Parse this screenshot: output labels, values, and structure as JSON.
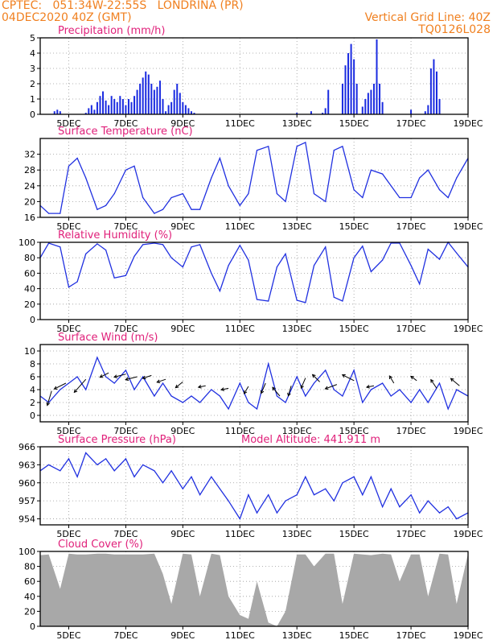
{
  "header": {
    "line1": "CPTEC:   051:34W-22:55S   LONDRINA (PR)",
    "line2": "04DEC2020 40Z (GMT)",
    "grid_note": "Vertical Grid Line: 40Z",
    "code": "TQ0126L028"
  },
  "colors": {
    "header": "#f08020",
    "title": "#e0207a",
    "line": "#2030e0",
    "bar": "#1a2be0",
    "cloud": "#a8a8a8",
    "arrow": "#000000"
  },
  "x_ticks": [
    "5DEC",
    "7DEC",
    "9DEC",
    "11DEC",
    "13DEC",
    "15DEC",
    "17DEC",
    "19DEC"
  ],
  "chart_data": [
    {
      "type": "bar",
      "title": "Precipitation (mm/h)",
      "xlim": [
        4,
        19
      ],
      "ylim": [
        0,
        5
      ],
      "yticks": [
        0,
        1,
        2,
        3,
        4,
        5
      ],
      "x": [
        4.5,
        4.6,
        4.7,
        5.6,
        5.7,
        5.8,
        5.9,
        6.0,
        6.1,
        6.2,
        6.3,
        6.4,
        6.5,
        6.6,
        6.7,
        6.8,
        6.9,
        7.0,
        7.1,
        7.2,
        7.3,
        7.4,
        7.5,
        7.6,
        7.7,
        7.8,
        7.9,
        8.0,
        8.1,
        8.2,
        8.3,
        8.4,
        8.5,
        8.6,
        8.7,
        8.8,
        8.9,
        9.0,
        9.1,
        9.2,
        9.3,
        9.4,
        13.0,
        13.5,
        13.9,
        14.0,
        14.1,
        14.6,
        14.7,
        14.8,
        14.9,
        15.0,
        15.1,
        15.3,
        15.4,
        15.5,
        15.6,
        15.7,
        15.8,
        15.9,
        16.0,
        17.0,
        17.5,
        17.6,
        17.7,
        17.8,
        17.9,
        18.0
      ],
      "values": [
        0.2,
        0.3,
        0.2,
        0.1,
        0.4,
        0.6,
        0.3,
        0.8,
        1.2,
        1.5,
        0.9,
        0.6,
        1.2,
        1.0,
        0.8,
        1.2,
        1.0,
        0.6,
        1.0,
        0.8,
        1.2,
        1.6,
        2.0,
        2.4,
        2.8,
        2.6,
        2.0,
        1.6,
        1.8,
        2.2,
        1.0,
        0.2,
        0.6,
        0.8,
        1.6,
        2.0,
        1.4,
        0.8,
        0.6,
        0.4,
        0.2,
        0.1,
        0.1,
        0.2,
        0.1,
        0.4,
        1.6,
        2.0,
        3.2,
        4.0,
        4.6,
        3.6,
        2.0,
        0.5,
        1.0,
        1.4,
        1.6,
        2.0,
        4.9,
        2.0,
        0.8,
        0.3,
        0.2,
        0.6,
        3.0,
        3.6,
        2.8,
        1.0
      ]
    },
    {
      "type": "line",
      "title": "Surface Temperature (nC)",
      "xlim": [
        4,
        19
      ],
      "ylim": [
        16,
        36
      ],
      "yticks": [
        16,
        20,
        24,
        28,
        32
      ],
      "x": [
        4.0,
        4.3,
        4.7,
        5.0,
        5.3,
        5.6,
        6.0,
        6.3,
        6.6,
        7.0,
        7.3,
        7.6,
        8.0,
        8.3,
        8.6,
        9.0,
        9.3,
        9.6,
        10.0,
        10.3,
        10.6,
        11.0,
        11.3,
        11.6,
        12.0,
        12.3,
        12.6,
        13.0,
        13.3,
        13.6,
        14.0,
        14.3,
        14.6,
        15.0,
        15.3,
        15.6,
        16.0,
        16.3,
        16.6,
        17.0,
        17.3,
        17.6,
        18.0,
        18.3,
        18.6,
        19.0
      ],
      "values": [
        19,
        17,
        17,
        29,
        31,
        26,
        18,
        19,
        22,
        28,
        29,
        21,
        17,
        18,
        21,
        22,
        18,
        18,
        26,
        31,
        24,
        19,
        22,
        33,
        34,
        22,
        20,
        34,
        35,
        22,
        20,
        33,
        34,
        23,
        21,
        28,
        27,
        24,
        21,
        21,
        26,
        28,
        23,
        21,
        26,
        31
      ]
    },
    {
      "type": "line",
      "title": "Relative Humidity (%)",
      "xlim": [
        4,
        19
      ],
      "ylim": [
        0,
        100
      ],
      "yticks": [
        0,
        20,
        40,
        60,
        80,
        100
      ],
      "x": [
        4.0,
        4.3,
        4.7,
        5.0,
        5.3,
        5.6,
        6.0,
        6.3,
        6.6,
        7.0,
        7.3,
        7.6,
        8.0,
        8.3,
        8.6,
        9.0,
        9.3,
        9.6,
        10.0,
        10.3,
        10.6,
        11.0,
        11.3,
        11.6,
        12.0,
        12.3,
        12.6,
        13.0,
        13.3,
        13.6,
        14.0,
        14.3,
        14.6,
        15.0,
        15.3,
        15.6,
        16.0,
        16.3,
        16.6,
        17.0,
        17.3,
        17.6,
        18.0,
        18.3,
        18.6,
        19.0
      ],
      "values": [
        80,
        99,
        94,
        42,
        49,
        85,
        98,
        90,
        54,
        57,
        82,
        97,
        99,
        97,
        80,
        68,
        94,
        97,
        60,
        37,
        70,
        96,
        77,
        26,
        24,
        68,
        85,
        25,
        22,
        70,
        94,
        29,
        24,
        80,
        95,
        62,
        77,
        99,
        99,
        70,
        46,
        91,
        78,
        100,
        86,
        68
      ]
    },
    {
      "type": "line",
      "title": "Surface Wind (m/s)",
      "xlim": [
        4,
        19
      ],
      "ylim": [
        -1,
        11
      ],
      "yticks": [
        0,
        2,
        4,
        6,
        8,
        10
      ],
      "x": [
        4.0,
        4.3,
        4.7,
        5.0,
        5.3,
        5.6,
        6.0,
        6.3,
        6.6,
        7.0,
        7.3,
        7.6,
        8.0,
        8.3,
        8.6,
        9.0,
        9.3,
        9.6,
        10.0,
        10.3,
        10.6,
        11.0,
        11.3,
        11.6,
        12.0,
        12.3,
        12.6,
        13.0,
        13.3,
        13.6,
        14.0,
        14.3,
        14.6,
        15.0,
        15.3,
        15.6,
        16.0,
        16.3,
        16.6,
        17.0,
        17.3,
        17.6,
        18.0,
        18.3,
        18.6,
        19.0
      ],
      "values": [
        3,
        2,
        4,
        5,
        6,
        4,
        9,
        6,
        5,
        7,
        4,
        6,
        3,
        5,
        3,
        2,
        3,
        2,
        4,
        3,
        1,
        5,
        2,
        1,
        8,
        3,
        2,
        6,
        3,
        5,
        7,
        4,
        3,
        7,
        2,
        4,
        5,
        3,
        4,
        2,
        4,
        2,
        5,
        1,
        4,
        3
      ],
      "vectors": [
        {
          "x": 4.4,
          "y": 3.8,
          "u": -0.6,
          "v": -2.0
        },
        {
          "x": 4.9,
          "y": 5.0,
          "u": -1.6,
          "v": -0.8
        },
        {
          "x": 5.6,
          "y": 5.6,
          "u": -1.6,
          "v": -1.8
        },
        {
          "x": 6.4,
          "y": 6.6,
          "u": -1.2,
          "v": -0.6
        },
        {
          "x": 7.0,
          "y": 6.4,
          "u": -1.6,
          "v": -0.4
        },
        {
          "x": 7.4,
          "y": 6.0,
          "u": -1.6,
          "v": -0.4
        },
        {
          "x": 7.9,
          "y": 6.2,
          "u": -1.2,
          "v": -0.4
        },
        {
          "x": 8.4,
          "y": 5.6,
          "u": -1.2,
          "v": -0.4
        },
        {
          "x": 9.0,
          "y": 5.2,
          "u": -1.0,
          "v": -0.8
        },
        {
          "x": 9.8,
          "y": 4.6,
          "u": -1.0,
          "v": -0.2
        },
        {
          "x": 10.6,
          "y": 4.2,
          "u": -1.0,
          "v": -0.2
        },
        {
          "x": 11.3,
          "y": 4.5,
          "u": -0.6,
          "v": -1.0
        },
        {
          "x": 11.9,
          "y": 5.0,
          "u": -0.6,
          "v": -1.4
        },
        {
          "x": 12.4,
          "y": 3.0,
          "u": -1.0,
          "v": 1.2
        },
        {
          "x": 12.8,
          "y": 4.6,
          "u": -0.4,
          "v": -1.4
        },
        {
          "x": 13.3,
          "y": 5.8,
          "u": -0.6,
          "v": -1.4
        },
        {
          "x": 13.8,
          "y": 5.2,
          "u": -1.0,
          "v": 1.0
        },
        {
          "x": 14.4,
          "y": 4.8,
          "u": -1.6,
          "v": -0.6
        },
        {
          "x": 15.0,
          "y": 5.4,
          "u": -1.6,
          "v": 0.8
        },
        {
          "x": 15.7,
          "y": 4.6,
          "u": -1.0,
          "v": -0.2
        },
        {
          "x": 16.4,
          "y": 5.0,
          "u": -0.6,
          "v": 1.0
        },
        {
          "x": 17.2,
          "y": 5.4,
          "u": -0.8,
          "v": 0.6
        },
        {
          "x": 17.9,
          "y": 4.2,
          "u": -0.8,
          "v": 1.2
        },
        {
          "x": 18.7,
          "y": 4.6,
          "u": -1.2,
          "v": 1.0
        }
      ]
    },
    {
      "type": "line",
      "title": "Surface Pressure (hPa)",
      "annotation": "Model Altitude: 441.911  m",
      "xlim": [
        4,
        19
      ],
      "ylim": [
        953,
        966
      ],
      "yticks": [
        954,
        957,
        960,
        963,
        966
      ],
      "x": [
        4.0,
        4.3,
        4.7,
        5.0,
        5.3,
        5.6,
        6.0,
        6.3,
        6.6,
        7.0,
        7.3,
        7.6,
        8.0,
        8.3,
        8.6,
        9.0,
        9.3,
        9.6,
        10.0,
        10.3,
        10.6,
        11.0,
        11.3,
        11.6,
        12.0,
        12.3,
        12.6,
        13.0,
        13.3,
        13.6,
        14.0,
        14.3,
        14.6,
        15.0,
        15.3,
        15.6,
        16.0,
        16.3,
        16.6,
        17.0,
        17.3,
        17.6,
        18.0,
        18.3,
        18.6,
        19.0
      ],
      "values": [
        962,
        963,
        962,
        964,
        961,
        965,
        963,
        964,
        962,
        964,
        961,
        963,
        962,
        960,
        962,
        959,
        961,
        958,
        961,
        959,
        957,
        954,
        958,
        955,
        958,
        955,
        957,
        958,
        961,
        958,
        959,
        957,
        960,
        961,
        958,
        961,
        956,
        959,
        956,
        958,
        955,
        957,
        955,
        956,
        954,
        955
      ]
    },
    {
      "type": "area",
      "title": "Cloud Cover (%)",
      "xlim": [
        4,
        19
      ],
      "ylim": [
        0,
        100
      ],
      "yticks": [
        0,
        20,
        40,
        60,
        80,
        100
      ],
      "x": [
        4.0,
        4.3,
        4.7,
        5.0,
        5.3,
        5.6,
        6.0,
        6.3,
        6.6,
        7.0,
        7.3,
        7.6,
        8.0,
        8.3,
        8.6,
        9.0,
        9.3,
        9.6,
        10.0,
        10.3,
        10.6,
        11.0,
        11.3,
        11.6,
        12.0,
        12.3,
        12.6,
        13.0,
        13.3,
        13.6,
        14.0,
        14.3,
        14.6,
        15.0,
        15.3,
        15.6,
        16.0,
        16.3,
        16.6,
        17.0,
        17.3,
        17.6,
        18.0,
        18.3,
        18.6,
        19.0
      ],
      "values": [
        95,
        96,
        50,
        97,
        96,
        96,
        97,
        97,
        96,
        96,
        96,
        96,
        97,
        70,
        30,
        97,
        96,
        40,
        97,
        95,
        40,
        15,
        10,
        60,
        5,
        0,
        20,
        96,
        96,
        80,
        97,
        97,
        30,
        97,
        96,
        95,
        97,
        96,
        60,
        96,
        96,
        40,
        97,
        96,
        30,
        97
      ]
    }
  ]
}
